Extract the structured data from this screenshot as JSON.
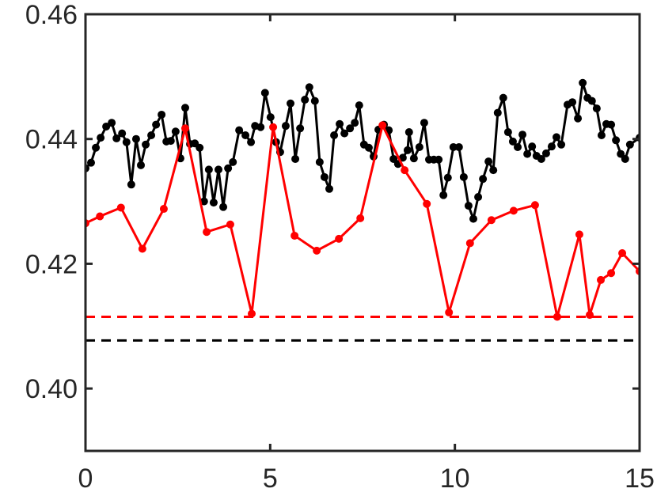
{
  "chart_data": {
    "type": "line",
    "xlim": [
      0,
      15
    ],
    "ylim": [
      0.39,
      0.46
    ],
    "xticks": [
      0,
      5,
      10,
      15
    ],
    "yticks": [
      {
        "value": 0.4,
        "label": "0.40"
      },
      0.42,
      0.44,
      0.46
    ],
    "series": [
      {
        "color": "#000000",
        "x": [
          0.0,
          0.15,
          0.28,
          0.41,
          0.56,
          0.71,
          0.84,
          0.99,
          1.11,
          1.24,
          1.37,
          1.5,
          1.63,
          1.78,
          1.91,
          2.06,
          2.19,
          2.31,
          2.44,
          2.57,
          2.7,
          2.83,
          2.96,
          3.09,
          3.21,
          3.34,
          3.47,
          3.6,
          3.73,
          3.86,
          3.99,
          4.16,
          4.33,
          4.48,
          4.59,
          4.74,
          4.86,
          5.01,
          5.16,
          5.27,
          5.42,
          5.55,
          5.68,
          5.81,
          5.94,
          6.06,
          6.21,
          6.34,
          6.47,
          6.6,
          6.73,
          6.88,
          7.01,
          7.16,
          7.29,
          7.41,
          7.54,
          7.67,
          7.8,
          7.93,
          8.08,
          8.21,
          8.34,
          8.46,
          8.59,
          8.72,
          8.76,
          8.89,
          9.04,
          9.17,
          9.3,
          9.43,
          9.56,
          9.69,
          9.81,
          9.96,
          10.11,
          10.24,
          10.37,
          10.5,
          10.63,
          10.76,
          10.91,
          11.04,
          11.16,
          11.31,
          11.44,
          11.57,
          11.7,
          11.83,
          11.96,
          12.09,
          12.21,
          12.34,
          12.47,
          12.62,
          12.75,
          12.88,
          13.05,
          13.18,
          13.33,
          13.46,
          13.59,
          13.71,
          13.84,
          13.97,
          14.1,
          14.23,
          14.36,
          14.49,
          14.61,
          14.74,
          15.0
        ],
        "values": [
          0.4353,
          0.4362,
          0.4386,
          0.4402,
          0.442,
          0.4426,
          0.4401,
          0.4409,
          0.4395,
          0.4327,
          0.44,
          0.4358,
          0.4391,
          0.4406,
          0.4423,
          0.4439,
          0.4396,
          0.4397,
          0.4412,
          0.4369,
          0.445,
          0.4392,
          0.4393,
          0.4386,
          0.43,
          0.4351,
          0.4298,
          0.4351,
          0.4291,
          0.4353,
          0.4363,
          0.4414,
          0.4406,
          0.4395,
          0.4421,
          0.4419,
          0.4474,
          0.4435,
          0.4395,
          0.4379,
          0.4421,
          0.4457,
          0.4368,
          0.4417,
          0.4463,
          0.4483,
          0.4461,
          0.4363,
          0.4339,
          0.432,
          0.4406,
          0.4424,
          0.4409,
          0.4417,
          0.4426,
          0.4454,
          0.4391,
          0.4386,
          0.4372,
          0.4415,
          0.4423,
          0.4414,
          0.4368,
          0.436,
          0.437,
          0.4382,
          0.4411,
          0.4369,
          0.4387,
          0.4426,
          0.4367,
          0.4367,
          0.4367,
          0.431,
          0.4338,
          0.4387,
          0.4387,
          0.4339,
          0.4293,
          0.4272,
          0.4307,
          0.4336,
          0.4364,
          0.435,
          0.4442,
          0.4466,
          0.4411,
          0.4396,
          0.4387,
          0.4407,
          0.4376,
          0.4388,
          0.4373,
          0.4368,
          0.4377,
          0.4388,
          0.4403,
          0.4391,
          0.4455,
          0.4459,
          0.4433,
          0.449,
          0.4466,
          0.4461,
          0.4449,
          0.4406,
          0.4424,
          0.4423,
          0.4398,
          0.4376,
          0.4368,
          0.4391,
          0.4402
        ]
      },
      {
        "color": "#ff0000",
        "x": [
          0.0,
          0.39,
          0.96,
          1.54,
          2.12,
          2.7,
          3.28,
          3.92,
          4.5,
          5.08,
          5.66,
          6.26,
          6.86,
          7.44,
          8.04,
          8.64,
          9.24,
          9.84,
          10.41,
          10.99,
          11.59,
          12.17,
          12.77,
          13.37,
          13.65,
          13.95,
          14.23,
          14.53,
          15.0
        ],
        "values": [
          0.4265,
          0.4276,
          0.429,
          0.4224,
          0.4288,
          0.4417,
          0.4251,
          0.4263,
          0.412,
          0.4419,
          0.4245,
          0.4221,
          0.424,
          0.4273,
          0.4422,
          0.435,
          0.4296,
          0.4122,
          0.4233,
          0.427,
          0.4285,
          0.4294,
          0.4115,
          0.4247,
          0.4118,
          0.4174,
          0.4185,
          0.4217,
          0.4188
        ]
      }
    ],
    "hlines": [
      {
        "y": 0.4115,
        "color": "#ff0000"
      },
      {
        "y": 0.4077,
        "color": "#000000"
      }
    ]
  }
}
